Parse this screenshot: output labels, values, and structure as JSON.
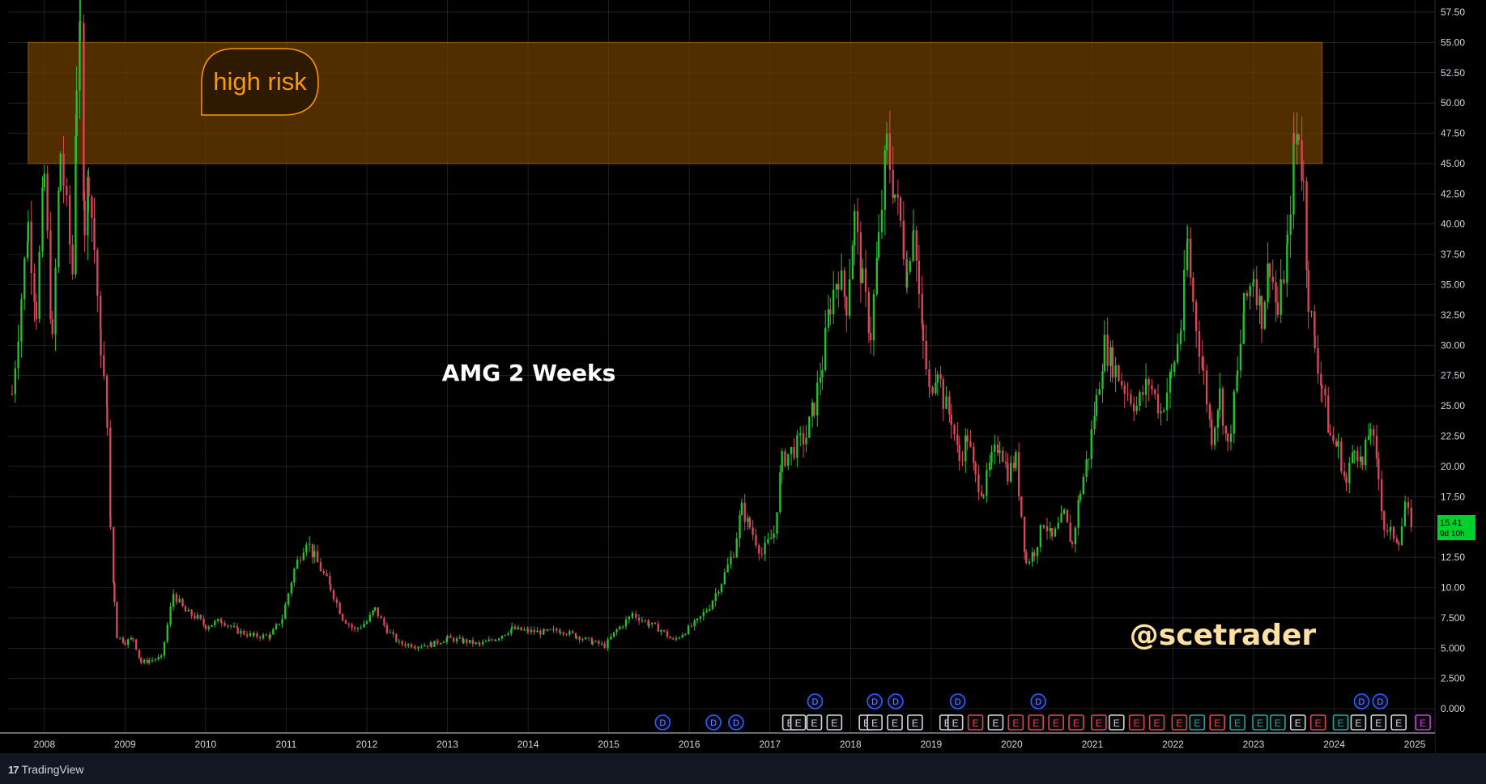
{
  "chart_data": {
    "type": "candlestick",
    "symbol_label": "AMG 2 Weeks",
    "watermark": "@scetrader",
    "zone_label": "high risk",
    "zone_range": [
      45.0,
      55.0
    ],
    "ylim": [
      -2.0,
      58.5
    ],
    "y_ticks": [
      "57.50",
      "55.00",
      "52.50",
      "50.00",
      "47.50",
      "45.00",
      "42.50",
      "40.00",
      "37.50",
      "35.00",
      "32.50",
      "30.00",
      "27.50",
      "25.00",
      "22.50",
      "20.00",
      "17.50",
      "15.00",
      "12.50",
      "10.00",
      "7.500",
      "5.000",
      "2.500",
      "0.000"
    ],
    "x_ticks": [
      "2008",
      "2009",
      "2010",
      "2011",
      "2012",
      "2013",
      "2014",
      "2015",
      "2016",
      "2017",
      "2018",
      "2019",
      "2020",
      "2021",
      "2022",
      "2023",
      "2024",
      "2025"
    ],
    "last_price": "15.41",
    "countdown": "9d 10h",
    "price_path": [
      [
        2007.6,
        26
      ],
      [
        2007.8,
        40
      ],
      [
        2007.9,
        33
      ],
      [
        2008.0,
        44
      ],
      [
        2008.1,
        30
      ],
      [
        2008.2,
        46
      ],
      [
        2008.35,
        36
      ],
      [
        2008.4,
        52
      ],
      [
        2008.45,
        55.5
      ],
      [
        2008.5,
        40
      ],
      [
        2008.55,
        44
      ],
      [
        2008.62,
        38
      ],
      [
        2008.7,
        30
      ],
      [
        2008.78,
        24
      ],
      [
        2008.82,
        15
      ],
      [
        2008.87,
        9
      ],
      [
        2008.9,
        6
      ],
      [
        2009.0,
        5.5
      ],
      [
        2009.1,
        5.8
      ],
      [
        2009.2,
        3.8
      ],
      [
        2009.3,
        4.0
      ],
      [
        2009.45,
        4.2
      ],
      [
        2009.6,
        9.5
      ],
      [
        2009.75,
        8.0
      ],
      [
        2009.9,
        7.5
      ],
      [
        2010.0,
        6.8
      ],
      [
        2010.2,
        7.3
      ],
      [
        2010.4,
        6.4
      ],
      [
        2010.6,
        6.0
      ],
      [
        2010.8,
        6.0
      ],
      [
        2010.95,
        7.5
      ],
      [
        2011.1,
        11.5
      ],
      [
        2011.25,
        14.0
      ],
      [
        2011.35,
        12.5
      ],
      [
        2011.55,
        10.0
      ],
      [
        2011.7,
        7.5
      ],
      [
        2011.85,
        6.5
      ],
      [
        2012.0,
        7.2
      ],
      [
        2012.1,
        8.2
      ],
      [
        2012.25,
        6.5
      ],
      [
        2012.4,
        5.4
      ],
      [
        2012.6,
        5.2
      ],
      [
        2012.8,
        5.3
      ],
      [
        2013.0,
        5.8
      ],
      [
        2013.2,
        5.6
      ],
      [
        2013.4,
        5.3
      ],
      [
        2013.6,
        5.8
      ],
      [
        2013.8,
        6.6
      ],
      [
        2014.0,
        6.4
      ],
      [
        2014.2,
        6.3
      ],
      [
        2014.4,
        6.5
      ],
      [
        2014.6,
        6.0
      ],
      [
        2014.8,
        5.5
      ],
      [
        2014.95,
        5.2
      ],
      [
        2015.1,
        6.5
      ],
      [
        2015.3,
        7.8
      ],
      [
        2015.5,
        7.0
      ],
      [
        2015.65,
        6.5
      ],
      [
        2015.8,
        5.6
      ],
      [
        2015.95,
        6.4
      ],
      [
        2016.1,
        7.2
      ],
      [
        2016.25,
        8.5
      ],
      [
        2016.4,
        10.5
      ],
      [
        2016.55,
        13.0
      ],
      [
        2016.65,
        16.5
      ],
      [
        2016.75,
        15.0
      ],
      [
        2016.9,
        12.8
      ],
      [
        2017.05,
        14.5
      ],
      [
        2017.15,
        20.5
      ],
      [
        2017.3,
        21.5
      ],
      [
        2017.45,
        22.5
      ],
      [
        2017.55,
        25.0
      ],
      [
        2017.65,
        28.5
      ],
      [
        2017.75,
        33.5
      ],
      [
        2017.85,
        36.0
      ],
      [
        2017.95,
        33.5
      ],
      [
        2018.05,
        40.5
      ],
      [
        2018.15,
        35.0
      ],
      [
        2018.25,
        31.0
      ],
      [
        2018.35,
        38.5
      ],
      [
        2018.45,
        46.5
      ],
      [
        2018.55,
        42.5
      ],
      [
        2018.62,
        40.0
      ],
      [
        2018.7,
        36.0
      ],
      [
        2018.78,
        40.5
      ],
      [
        2018.85,
        34.0
      ],
      [
        2018.9,
        30.0
      ],
      [
        2018.98,
        26.0
      ],
      [
        2019.08,
        28.5
      ],
      [
        2019.15,
        25.5
      ],
      [
        2019.25,
        24.0
      ],
      [
        2019.35,
        20.5
      ],
      [
        2019.45,
        22.5
      ],
      [
        2019.55,
        19.0
      ],
      [
        2019.65,
        18.0
      ],
      [
        2019.75,
        20.5
      ],
      [
        2019.85,
        22.0
      ],
      [
        2019.95,
        19.5
      ],
      [
        2020.05,
        20.5
      ],
      [
        2020.12,
        16.0
      ],
      [
        2020.18,
        12.0
      ],
      [
        2020.28,
        13.0
      ],
      [
        2020.4,
        15.5
      ],
      [
        2020.5,
        14.0
      ],
      [
        2020.65,
        16.0
      ],
      [
        2020.75,
        13.5
      ],
      [
        2020.85,
        18.0
      ],
      [
        2020.95,
        21.0
      ],
      [
        2021.05,
        25.5
      ],
      [
        2021.15,
        30.0
      ],
      [
        2021.25,
        28.5
      ],
      [
        2021.4,
        26.5
      ],
      [
        2021.55,
        25.0
      ],
      [
        2021.7,
        27.0
      ],
      [
        2021.85,
        24.5
      ],
      [
        2021.98,
        27.5
      ],
      [
        2022.1,
        31.5
      ],
      [
        2022.18,
        38.5
      ],
      [
        2022.25,
        33.5
      ],
      [
        2022.38,
        27.5
      ],
      [
        2022.48,
        22.5
      ],
      [
        2022.58,
        26.0
      ],
      [
        2022.68,
        21.5
      ],
      [
        2022.8,
        27.5
      ],
      [
        2022.88,
        33.0
      ],
      [
        2023.0,
        36.0
      ],
      [
        2023.1,
        32.5
      ],
      [
        2023.2,
        37.0
      ],
      [
        2023.3,
        32.5
      ],
      [
        2023.42,
        38.0
      ],
      [
        2023.5,
        46.5
      ],
      [
        2023.56,
        47.8
      ],
      [
        2023.62,
        43.0
      ],
      [
        2023.68,
        34.0
      ],
      [
        2023.76,
        30.0
      ],
      [
        2023.85,
        26.5
      ],
      [
        2023.95,
        22.5
      ],
      [
        2024.05,
        21.5
      ],
      [
        2024.15,
        18.5
      ],
      [
        2024.25,
        22.0
      ],
      [
        2024.35,
        20.0
      ],
      [
        2024.45,
        23.5
      ],
      [
        2024.55,
        19.0
      ],
      [
        2024.62,
        15.0
      ],
      [
        2024.7,
        14.5
      ],
      [
        2024.8,
        14.0
      ],
      [
        2024.88,
        16.5
      ],
      [
        2024.96,
        15.4
      ]
    ],
    "event_markers": [
      {
        "t": 2015.67,
        "k": "D",
        "row": 2
      },
      {
        "t": 2016.3,
        "k": "D",
        "row": 2
      },
      {
        "t": 2016.58,
        "k": "D",
        "row": 2
      },
      {
        "t": 2017.56,
        "k": "D",
        "row": 1
      },
      {
        "t": 2018.3,
        "k": "D",
        "row": 1
      },
      {
        "t": 2018.56,
        "k": "D",
        "row": 1
      },
      {
        "t": 2019.33,
        "k": "D",
        "row": 1
      },
      {
        "t": 2020.33,
        "k": "D",
        "row": 1
      },
      {
        "t": 2024.34,
        "k": "D",
        "row": 1
      },
      {
        "t": 2024.57,
        "k": "D",
        "row": 1
      },
      {
        "t": 2017.25,
        "k": "E",
        "row": 2,
        "c": "grey"
      },
      {
        "t": 2017.35,
        "k": "E",
        "row": 2,
        "c": "grey"
      },
      {
        "t": 2017.55,
        "k": "E",
        "row": 2,
        "c": "grey"
      },
      {
        "t": 2017.8,
        "k": "E",
        "row": 2,
        "c": "grey"
      },
      {
        "t": 2018.2,
        "k": "E",
        "row": 2,
        "c": "grey"
      },
      {
        "t": 2018.3,
        "k": "E",
        "row": 2,
        "c": "grey"
      },
      {
        "t": 2018.55,
        "k": "E",
        "row": 2,
        "c": "grey"
      },
      {
        "t": 2018.8,
        "k": "E",
        "row": 2,
        "c": "grey"
      },
      {
        "t": 2019.2,
        "k": "E",
        "row": 2,
        "c": "grey"
      },
      {
        "t": 2019.3,
        "k": "E",
        "row": 2,
        "c": "grey"
      },
      {
        "t": 2019.55,
        "k": "E",
        "row": 2,
        "c": "red"
      },
      {
        "t": 2019.8,
        "k": "E",
        "row": 2,
        "c": "grey"
      },
      {
        "t": 2020.05,
        "k": "E",
        "row": 2,
        "c": "red"
      },
      {
        "t": 2020.3,
        "k": "E",
        "row": 2,
        "c": "red"
      },
      {
        "t": 2020.55,
        "k": "E",
        "row": 2,
        "c": "red"
      },
      {
        "t": 2020.8,
        "k": "E",
        "row": 2,
        "c": "red"
      },
      {
        "t": 2021.08,
        "k": "E",
        "row": 2,
        "c": "red"
      },
      {
        "t": 2021.3,
        "k": "E",
        "row": 2,
        "c": "grey"
      },
      {
        "t": 2021.55,
        "k": "E",
        "row": 2,
        "c": "red"
      },
      {
        "t": 2021.8,
        "k": "E",
        "row": 2,
        "c": "red"
      },
      {
        "t": 2022.08,
        "k": "E",
        "row": 2,
        "c": "red"
      },
      {
        "t": 2022.3,
        "k": "E",
        "row": 2,
        "c": "teal"
      },
      {
        "t": 2022.55,
        "k": "E",
        "row": 2,
        "c": "red"
      },
      {
        "t": 2022.8,
        "k": "E",
        "row": 2,
        "c": "teal"
      },
      {
        "t": 2023.08,
        "k": "E",
        "row": 2,
        "c": "teal"
      },
      {
        "t": 2023.3,
        "k": "E",
        "row": 2,
        "c": "teal"
      },
      {
        "t": 2023.55,
        "k": "E",
        "row": 2,
        "c": "grey"
      },
      {
        "t": 2023.8,
        "k": "E",
        "row": 2,
        "c": "red"
      },
      {
        "t": 2024.08,
        "k": "E",
        "row": 2,
        "c": "teal"
      },
      {
        "t": 2024.3,
        "k": "E",
        "row": 2,
        "c": "grey"
      },
      {
        "t": 2024.55,
        "k": "E",
        "row": 2,
        "c": "grey"
      },
      {
        "t": 2024.8,
        "k": "E",
        "row": 2,
        "c": "grey"
      },
      {
        "t": 2025.1,
        "k": "E",
        "row": 2,
        "c": "purple"
      }
    ],
    "x_range": [
      2007.55,
      2025.25
    ]
  },
  "footer": {
    "brand": "TradingView"
  },
  "colors": {
    "background": "#000000",
    "up": "#22c32b",
    "down": "#d9475a",
    "zone_fill": "#6b3d00",
    "zone_text": "#ff9800",
    "grid": "#5a5f6b",
    "axis_text": "#d1d4dc",
    "price_tag": "#00d12a",
    "watermark": "#ffe0a3"
  }
}
